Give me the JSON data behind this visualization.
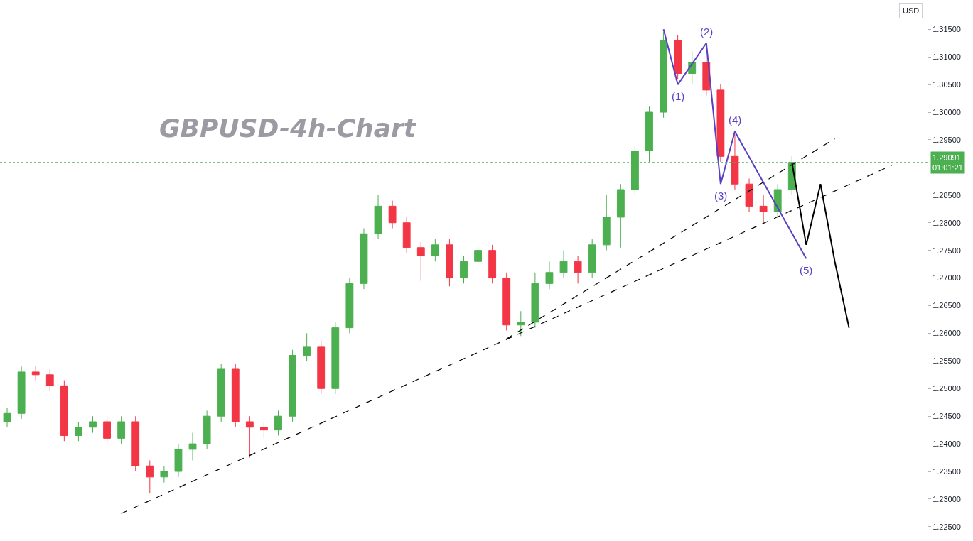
{
  "chart_data": {
    "type": "candlestick",
    "title": "GBPUSD-4h-Chart",
    "categories": [
      null,
      null,
      null,
      null,
      null,
      null,
      null,
      null,
      null,
      null,
      null,
      null,
      null,
      null,
      null,
      null,
      null,
      null,
      null,
      null,
      null,
      null,
      null,
      null,
      null,
      null,
      null,
      null,
      null,
      null,
      null,
      null,
      null,
      null,
      null,
      null,
      null,
      null,
      null,
      null,
      null,
      null,
      null,
      null,
      null,
      null,
      null,
      null,
      null,
      null,
      null,
      null,
      null,
      null,
      null,
      null,
      null,
      null,
      null,
      null,
      null,
      null,
      null,
      null,
      null
    ],
    "ohlc": [
      [
        1.244,
        1.2465,
        1.243,
        1.2455
      ],
      [
        1.2455,
        1.254,
        1.2445,
        1.253
      ],
      [
        1.253,
        1.254,
        1.2515,
        1.2525
      ],
      [
        1.2525,
        1.2535,
        1.2495,
        1.2505
      ],
      [
        1.2505,
        1.2515,
        1.2405,
        1.2415
      ],
      [
        1.2415,
        1.244,
        1.2405,
        1.243
      ],
      [
        1.243,
        1.245,
        1.242,
        1.244
      ],
      [
        1.244,
        1.245,
        1.24,
        1.241
      ],
      [
        1.241,
        1.245,
        1.24,
        1.244
      ],
      [
        1.244,
        1.245,
        1.235,
        1.236
      ],
      [
        1.236,
        1.237,
        1.231,
        1.234
      ],
      [
        1.234,
        1.236,
        1.233,
        1.235
      ],
      [
        1.235,
        1.24,
        1.234,
        1.239
      ],
      [
        1.239,
        1.242,
        1.237,
        1.24
      ],
      [
        1.24,
        1.246,
        1.239,
        1.245
      ],
      [
        1.245,
        1.2545,
        1.244,
        1.2535
      ],
      [
        1.2535,
        1.2545,
        1.243,
        1.244
      ],
      [
        1.244,
        1.245,
        1.2375,
        1.243
      ],
      [
        1.243,
        1.244,
        1.241,
        1.2425
      ],
      [
        1.2425,
        1.246,
        1.2415,
        1.245
      ],
      [
        1.245,
        1.257,
        1.244,
        1.256
      ],
      [
        1.256,
        1.26,
        1.255,
        1.2575
      ],
      [
        1.2575,
        1.2585,
        1.249,
        1.25
      ],
      [
        1.25,
        1.262,
        1.249,
        1.261
      ],
      [
        1.261,
        1.27,
        1.26,
        1.269
      ],
      [
        1.269,
        1.279,
        1.268,
        1.278
      ],
      [
        1.278,
        1.285,
        1.277,
        1.283
      ],
      [
        1.283,
        1.284,
        1.279,
        1.28
      ],
      [
        1.28,
        1.281,
        1.2745,
        1.2755
      ],
      [
        1.2755,
        1.2765,
        1.2695,
        1.274
      ],
      [
        1.274,
        1.277,
        1.273,
        1.276
      ],
      [
        1.276,
        1.277,
        1.2685,
        1.27
      ],
      [
        1.27,
        1.274,
        1.269,
        1.273
      ],
      [
        1.273,
        1.276,
        1.272,
        1.275
      ],
      [
        1.275,
        1.276,
        1.269,
        1.27
      ],
      [
        1.27,
        1.271,
        1.2605,
        1.2615
      ],
      [
        1.2615,
        1.264,
        1.2595,
        1.262
      ],
      [
        1.262,
        1.271,
        1.261,
        1.269
      ],
      [
        1.269,
        1.273,
        1.268,
        1.271
      ],
      [
        1.271,
        1.275,
        1.27,
        1.273
      ],
      [
        1.273,
        1.274,
        1.269,
        1.271
      ],
      [
        1.271,
        1.277,
        1.27,
        1.276
      ],
      [
        1.276,
        1.285,
        1.275,
        1.281
      ],
      [
        1.281,
        1.287,
        1.2755,
        1.286
      ],
      [
        1.286,
        1.294,
        1.285,
        1.293
      ],
      [
        1.293,
        1.301,
        1.291,
        1.3
      ],
      [
        1.3,
        1.3145,
        1.299,
        1.313
      ],
      [
        1.313,
        1.314,
        1.306,
        1.307
      ],
      [
        1.307,
        1.311,
        1.305,
        1.309
      ],
      [
        1.309,
        1.311,
        1.303,
        1.304
      ],
      [
        1.304,
        1.305,
        1.291,
        1.292
      ],
      [
        1.292,
        1.296,
        1.286,
        1.287
      ],
      [
        1.287,
        1.288,
        1.282,
        1.283
      ],
      [
        1.283,
        1.285,
        1.28,
        1.282
      ],
      [
        1.282,
        1.287,
        1.281,
        1.286
      ],
      [
        1.286,
        1.292,
        1.285,
        1.2909
      ],
      null,
      null,
      null,
      null,
      null,
      null,
      null,
      null,
      null
    ],
    "series": [
      {
        "type": "line",
        "color": "#5b3fc4",
        "line_style": "solid",
        "values": [
          null,
          null,
          null,
          null,
          null,
          null,
          null,
          null,
          null,
          null,
          null,
          null,
          null,
          null,
          null,
          null,
          null,
          null,
          null,
          null,
          null,
          null,
          null,
          null,
          null,
          null,
          null,
          null,
          null,
          null,
          null,
          null,
          null,
          null,
          null,
          null,
          null,
          null,
          null,
          null,
          null,
          null,
          null,
          null,
          null,
          null,
          1.315,
          1.305,
          null,
          1.3125,
          1.287,
          1.2965,
          null,
          null,
          null,
          null,
          1.2735,
          null,
          null,
          null,
          null,
          null,
          null,
          null,
          null
        ]
      },
      {
        "type": "line",
        "color": "#000000",
        "line_style": "solid",
        "values": [
          null,
          null,
          null,
          null,
          null,
          null,
          null,
          null,
          null,
          null,
          null,
          null,
          null,
          null,
          null,
          null,
          null,
          null,
          null,
          null,
          null,
          null,
          null,
          null,
          null,
          null,
          null,
          null,
          null,
          null,
          null,
          null,
          null,
          null,
          null,
          null,
          null,
          null,
          null,
          null,
          null,
          null,
          null,
          null,
          null,
          null,
          null,
          null,
          null,
          null,
          null,
          null,
          null,
          null,
          null,
          1.2909,
          1.276,
          1.287,
          1.273,
          1.261,
          null,
          null,
          null,
          null,
          null
        ]
      },
      {
        "type": "line",
        "color": "#000000",
        "line_style": "dashed",
        "values": [
          null,
          null,
          null,
          null,
          null,
          null,
          null,
          null,
          1.2274,
          null,
          null,
          null,
          null,
          null,
          null,
          null,
          null,
          null,
          null,
          null,
          null,
          null,
          null,
          null,
          null,
          null,
          null,
          null,
          null,
          null,
          null,
          null,
          null,
          null,
          null,
          null,
          null,
          null,
          null,
          null,
          null,
          null,
          null,
          null,
          null,
          null,
          null,
          null,
          null,
          null,
          null,
          null,
          null,
          null,
          null,
          null,
          null,
          null,
          null,
          null,
          null,
          null,
          1.2904,
          null,
          null
        ]
      },
      {
        "type": "line",
        "color": "#000000",
        "line_style": "dashed",
        "values": [
          null,
          null,
          null,
          null,
          null,
          null,
          null,
          null,
          null,
          null,
          null,
          null,
          null,
          null,
          null,
          null,
          null,
          null,
          null,
          null,
          null,
          null,
          null,
          null,
          null,
          null,
          null,
          null,
          null,
          null,
          null,
          null,
          null,
          null,
          null,
          1.259,
          null,
          null,
          null,
          null,
          null,
          null,
          null,
          null,
          null,
          null,
          null,
          null,
          null,
          null,
          null,
          null,
          null,
          null,
          null,
          null,
          null,
          null,
          1.2952,
          null,
          null,
          null,
          null,
          null,
          null
        ]
      }
    ],
    "annotations": [
      "(1)",
      "(2)",
      "(3)",
      "(4)",
      "(5)",
      "USD"
    ],
    "ref_lines": [
      {
        "axis": "y",
        "value": 1.29091,
        "label": "1.29091\n01:01:21",
        "color": "#4caf50",
        "line_style": "dotted"
      }
    ],
    "ylim": [
      1.2237,
      1.3203
    ],
    "yticks": [
      {
        "value": 1.225,
        "label": "1.22500"
      },
      {
        "value": 1.23,
        "label": "1.23000"
      },
      {
        "value": 1.235,
        "label": "1.23500"
      },
      {
        "value": 1.24,
        "label": "1.24000"
      },
      {
        "value": 1.245,
        "label": "1.24500"
      },
      {
        "value": 1.25,
        "label": "1.25000"
      },
      {
        "value": 1.255,
        "label": "1.25500"
      },
      {
        "value": 1.26,
        "label": "1.26000"
      },
      {
        "value": 1.265,
        "label": "1.26500"
      },
      {
        "value": 1.27,
        "label": "1.27000"
      },
      {
        "value": 1.275,
        "label": "1.27500"
      },
      {
        "value": 1.28,
        "label": "1.28000"
      },
      {
        "value": 1.285,
        "label": "1.28500"
      },
      {
        "value": 1.295,
        "label": "1.29500"
      },
      {
        "value": 1.3,
        "label": "1.30000"
      },
      {
        "value": 1.305,
        "label": "1.30500"
      },
      {
        "value": 1.31,
        "label": "1.31000"
      },
      {
        "value": 1.315,
        "label": "1.31500"
      }
    ],
    "tick_labels": "y",
    "grid": false
  }
}
